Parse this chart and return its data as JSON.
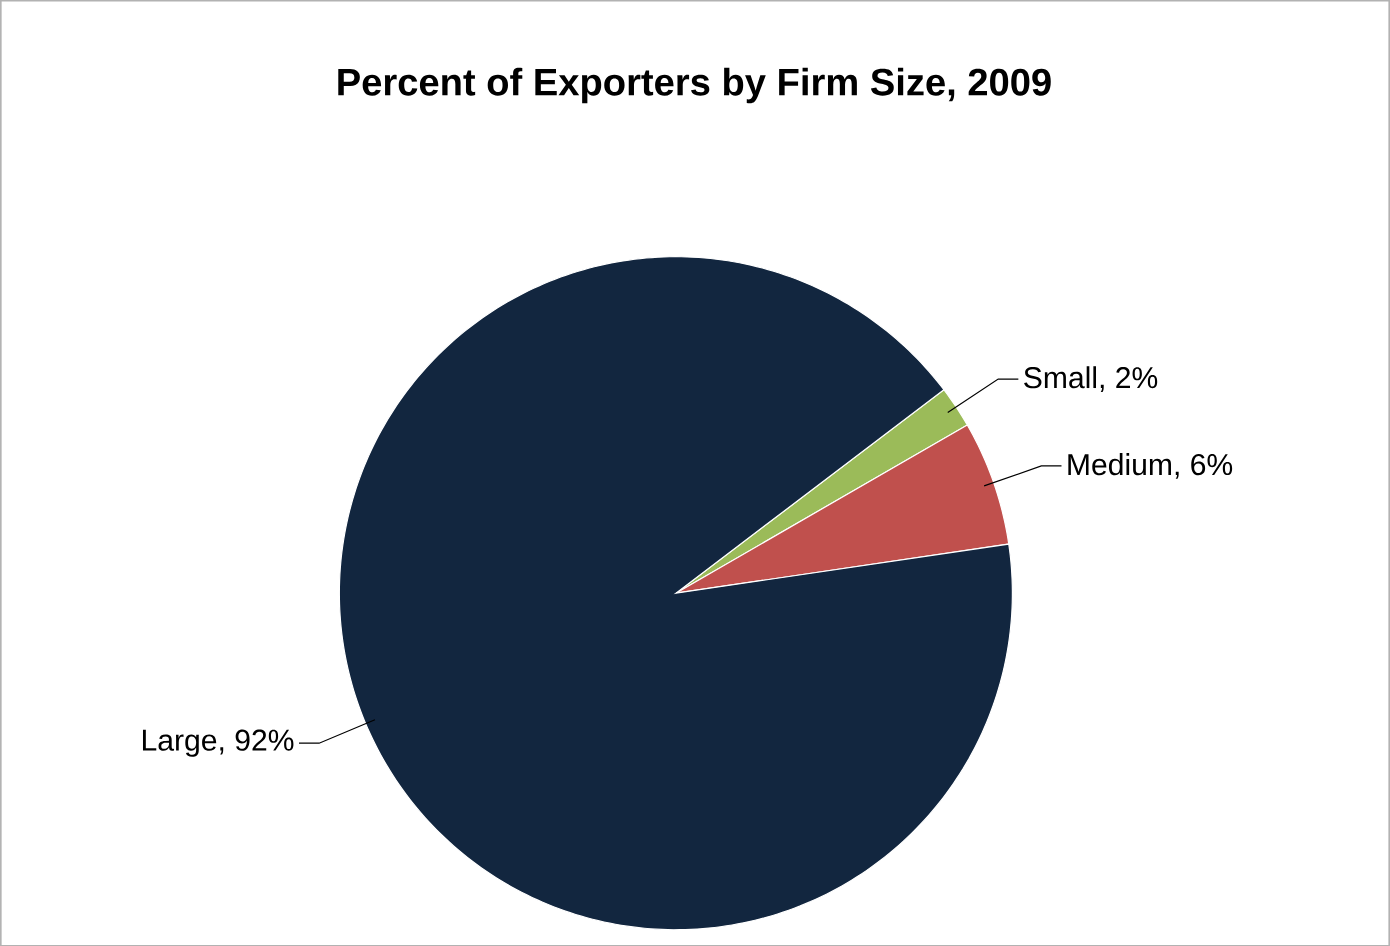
{
  "chart_data": {
    "type": "pie",
    "title": "Percent of Exporters by Firm Size, 2009",
    "categories": [
      "Small, 2%",
      "Medium, 6%",
      "Large, 92%"
    ],
    "values": [
      2,
      6,
      92
    ],
    "colors": [
      "#9bbb59",
      "#c0504d",
      "#12263f"
    ]
  }
}
